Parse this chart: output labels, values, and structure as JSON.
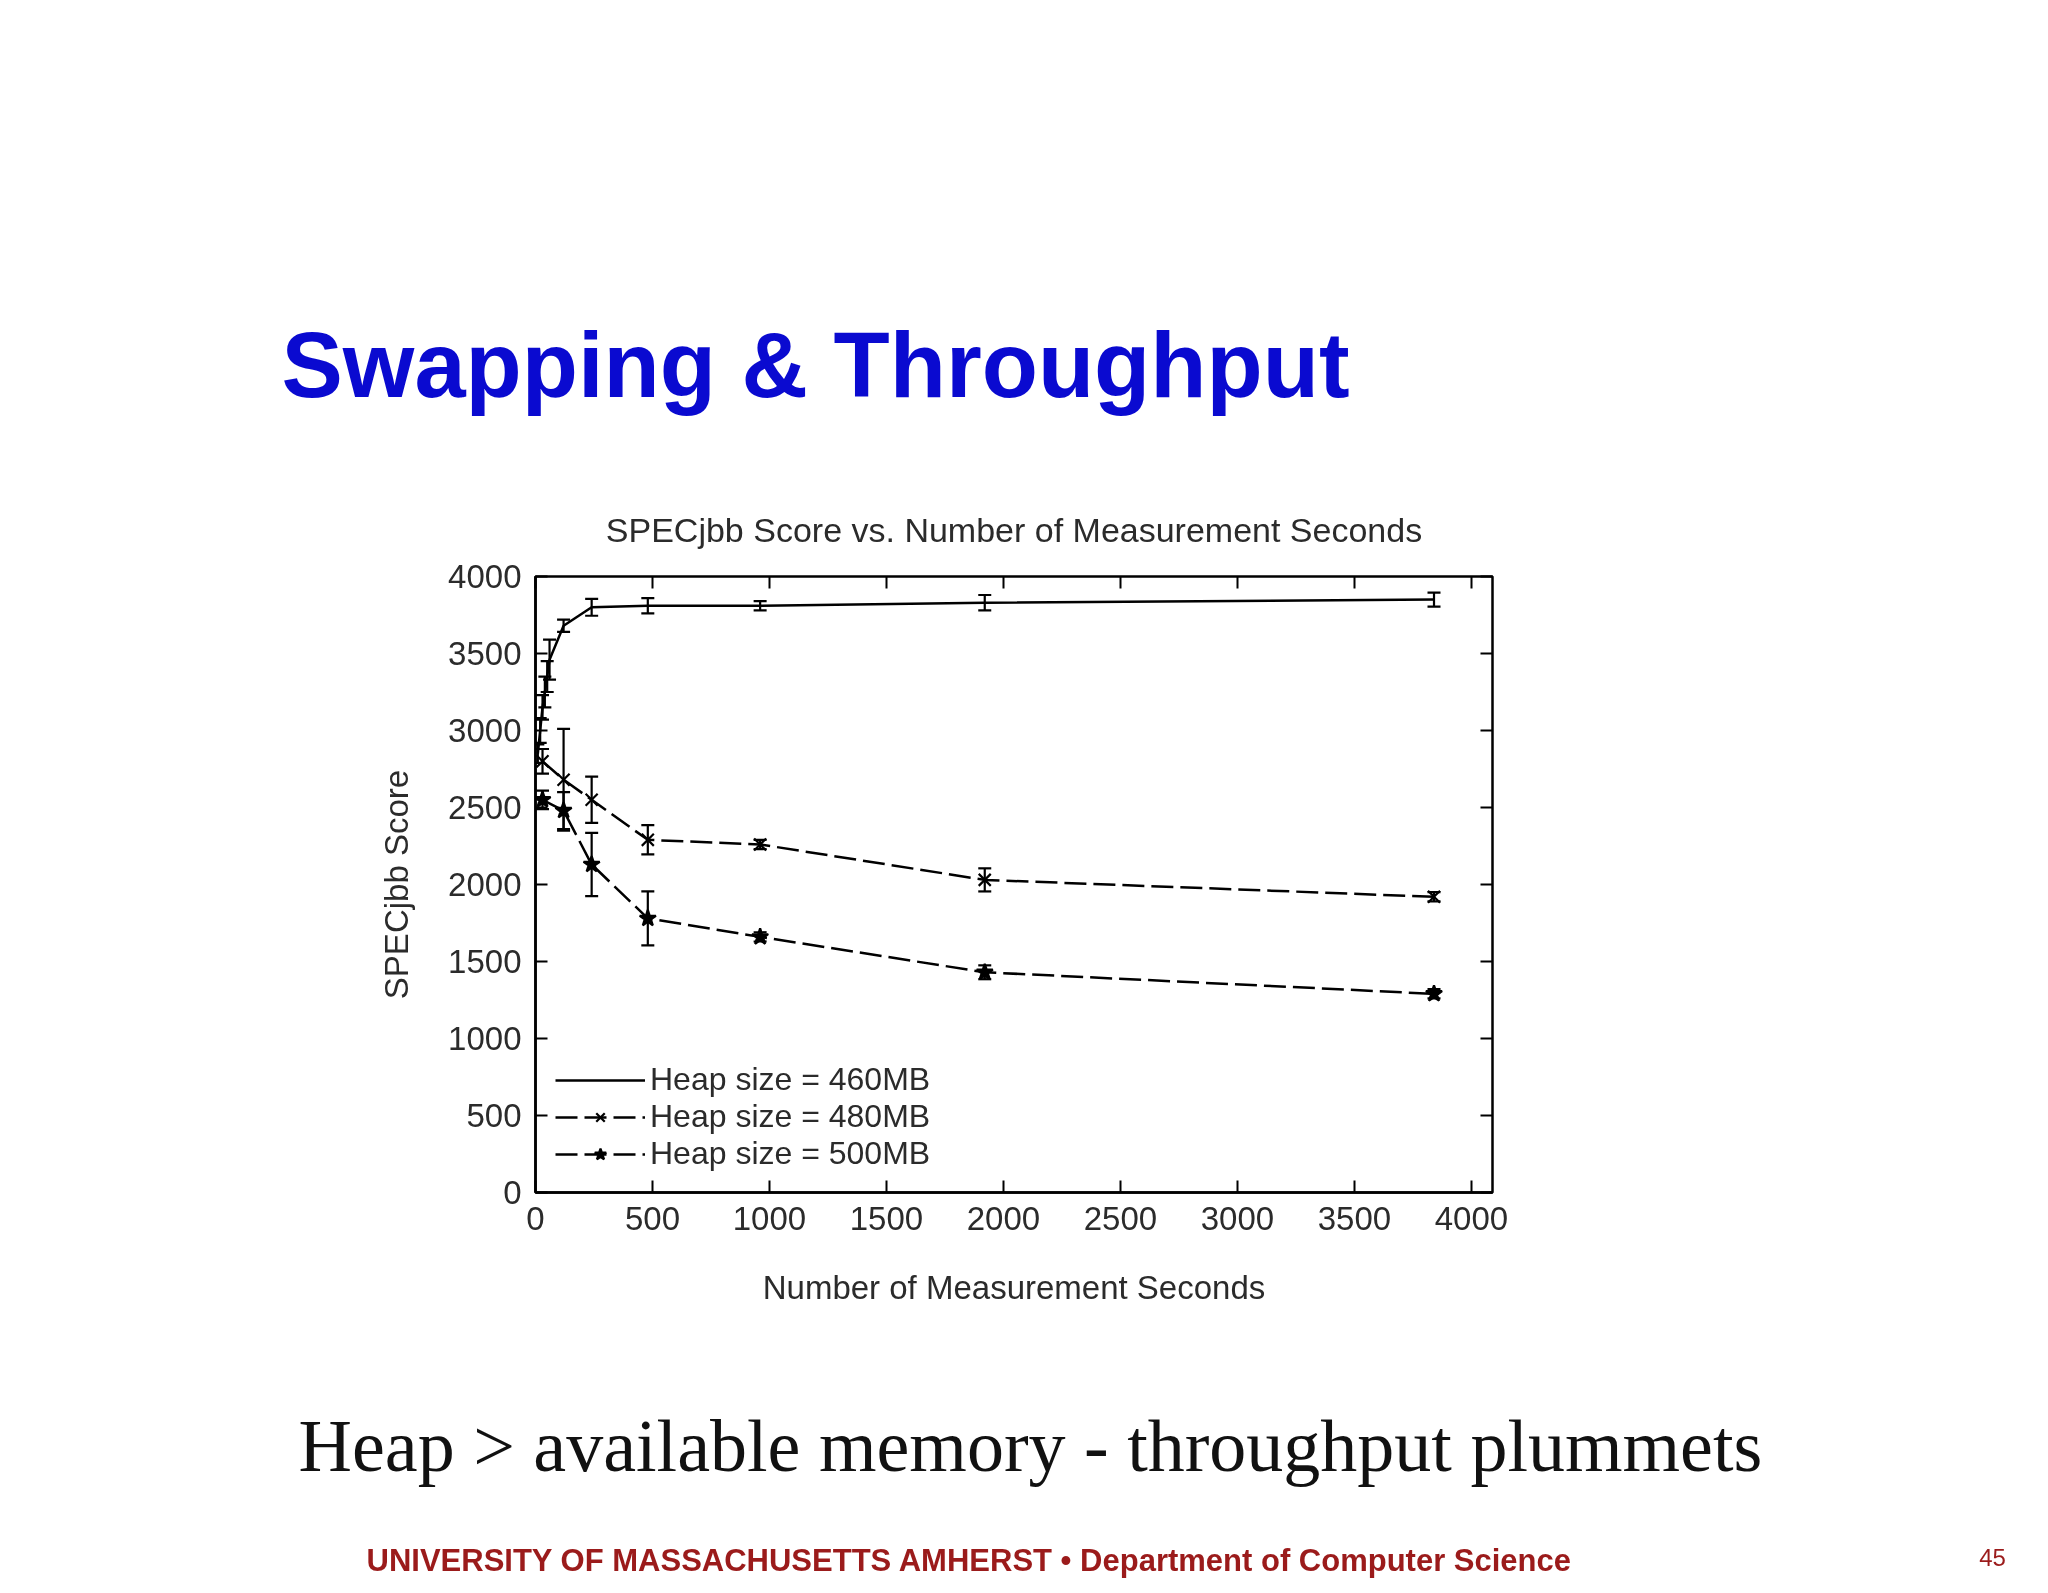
{
  "chart_data": {
    "type": "line",
    "title": "Swapping & Throughput",
    "subtitle": "SPECjbb Score vs. Number of Measurement Seconds",
    "xlabel": "Number of Measurement Seconds",
    "ylabel": "SPECjbb Score",
    "series": [
      {
        "name": "Heap size = 460MB",
        "color": "#000000",
        "line_style": "solid",
        "x": [
          10,
          20,
          30,
          40,
          50,
          60,
          120,
          240,
          480,
          960,
          1920,
          3840
        ],
        "values": [
          2850,
          3000,
          3150,
          3250,
          3350,
          3460,
          3680,
          3800,
          3810,
          3810,
          3830,
          3850
        ],
        "errors": [
          60,
          80,
          80,
          100,
          100,
          130,
          40,
          55,
          50,
          30,
          50,
          45
        ]
      },
      {
        "name": "Heap size = 480MB",
        "color": "#000000",
        "marker": "cross",
        "line_style": "dashed",
        "x": [
          30,
          120,
          240,
          480,
          960,
          1920,
          3840
        ],
        "values": [
          2800,
          2680,
          2550,
          2290,
          2260,
          2030,
          1920
        ],
        "errors": [
          80,
          330,
          150,
          95,
          30,
          75,
          30
        ]
      },
      {
        "name": "Heap size = 500MB",
        "color": "#000000",
        "marker": "star",
        "line_style": "dashed",
        "x": [
          30,
          120,
          240,
          480,
          960,
          1920,
          3840
        ],
        "values": [
          2550,
          2480,
          2130,
          1780,
          1660,
          1430,
          1290
        ],
        "errors": [
          60,
          120,
          205,
          175,
          30,
          45,
          30
        ]
      }
    ],
    "xlim": [
      0,
      4090
    ],
    "ylim": [
      0,
      4000
    ],
    "xticks": [
      0,
      500,
      1000,
      1500,
      2000,
      2500,
      3000,
      3500,
      4000
    ],
    "yticks": [
      0,
      500,
      1000,
      1500,
      2000,
      2500,
      3000,
      3500,
      4000
    ],
    "legend": "bottom left",
    "annotations": [
      "Heap > available memory - throughput plummets",
      "UNIVERSITY OF MASSACHUSETTS AMHERST • Department of Computer Science",
      "45"
    ]
  }
}
